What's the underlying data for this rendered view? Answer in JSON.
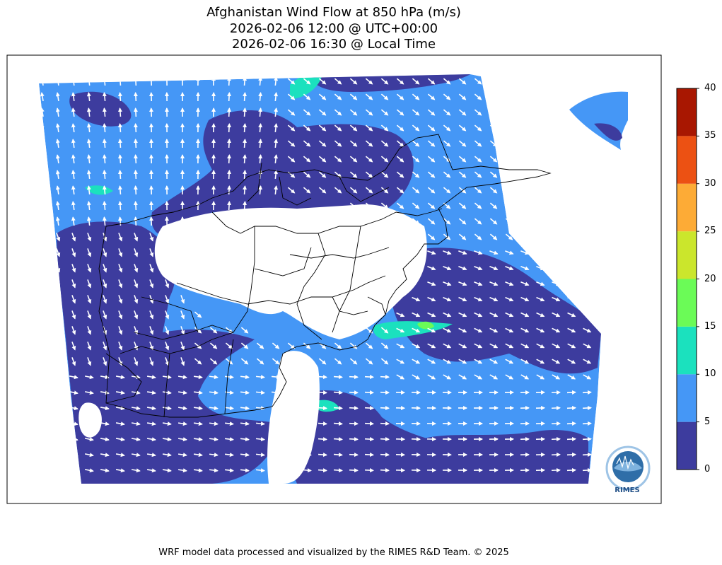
{
  "title_lines": [
    "Afghanistan Wind Flow at 850 hPa (m/s)",
    "2026-02-06 12:00 @ UTC+00:00",
    "2026-02-06 16:30 @ Local Time"
  ],
  "colorbar": {
    "ticks": [
      "0",
      "5",
      "10",
      "15",
      "20",
      "25",
      "30",
      "35",
      "40"
    ],
    "levels": [
      {
        "min": 0,
        "max": 5,
        "color": "#3d3c9e"
      },
      {
        "min": 5,
        "max": 10,
        "color": "#4597f6"
      },
      {
        "min": 10,
        "max": 15,
        "color": "#1be1be"
      },
      {
        "min": 15,
        "max": 20,
        "color": "#6bfb57"
      },
      {
        "min": 20,
        "max": 25,
        "color": "#cbe62c"
      },
      {
        "min": 25,
        "max": 30,
        "color": "#fdab36"
      },
      {
        "min": 30,
        "max": 35,
        "color": "#ec5113"
      },
      {
        "min": 35,
        "max": 40,
        "color": "#a81701"
      }
    ]
  },
  "logo_text": "RIMES",
  "footer": "WRF model data processed and visualized by the RIMES R&D Team. © 2025"
}
